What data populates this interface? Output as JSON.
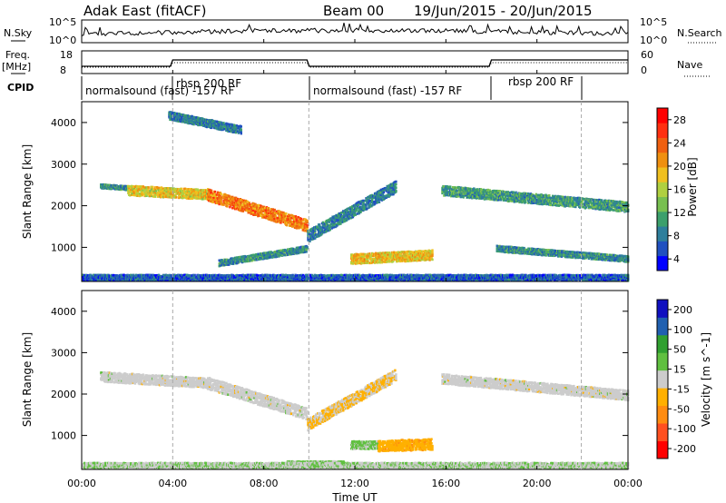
{
  "header": {
    "station": "Adak East (fitACF)",
    "beam": "Beam 00",
    "date_range": "19/Jun/2015 - 20/Jun/2015"
  },
  "left_labels": {
    "nsky": "N.Sky",
    "freq": "Freq.",
    "freq_unit": "[MHz]",
    "cpid": "CPID"
  },
  "right_labels": {
    "nsearch": "N.Search",
    "nave": "Nave"
  },
  "noise_axis": {
    "left_ticks": [
      "10^5",
      "10^0"
    ],
    "right_ticks": [
      "10^5",
      "10^0"
    ]
  },
  "freq_axis": {
    "left_ticks": [
      "18",
      "8"
    ],
    "right_ticks": [
      "60",
      "0"
    ]
  },
  "cpid_labels": [
    "normalsound (fast) -157 RF",
    "rbsp 200 RF",
    "normalsound (fast) -157 RF",
    "rbsp 200 RF"
  ],
  "x_axis": {
    "label": "Time UT",
    "ticks": [
      "00:00",
      "04:00",
      "08:00",
      "12:00",
      "16:00",
      "20:00",
      "00:00"
    ]
  },
  "colors": {
    "axis": "#000000",
    "mode_change_line": "#aaaaaa"
  },
  "chart_data": [
    {
      "type": "heatmap",
      "quantity": "Power",
      "ylabel": "Slant Range [km]",
      "xlabel": "",
      "xlim_hours": [
        0,
        24
      ],
      "ylim_km": [
        180,
        4500
      ],
      "yticks": [
        "1000",
        "2000",
        "3000",
        "4000"
      ],
      "colorbar": {
        "label": "Power [dB]",
        "ticks": [
          "28",
          "24",
          "20",
          "16",
          "12",
          "8",
          "4"
        ],
        "range": [
          0,
          30
        ],
        "colors": [
          "#0000ff",
          "#2050c0",
          "#2e7f9c",
          "#3ca06c",
          "#78c050",
          "#b0d040",
          "#f0c020",
          "#f09010",
          "#f06010",
          "#ff3010",
          "#ff0000"
        ]
      },
      "echo_bands": [
        {
          "t_start": 0.8,
          "t_end": 2.0,
          "r_start": 2500,
          "r_end": 2450,
          "width_km": 100,
          "value": 8
        },
        {
          "t_start": 2.0,
          "t_end": 5.5,
          "r_start": 2400,
          "r_end": 2300,
          "width_km": 250,
          "value": 17
        },
        {
          "t_start": 5.5,
          "t_end": 9.9,
          "r_start": 2300,
          "r_end": 1550,
          "width_km": 300,
          "value": 22
        },
        {
          "t_start": 9.9,
          "t_end": 13.8,
          "r_start": 1300,
          "r_end": 2500,
          "width_km": 300,
          "value": 7
        },
        {
          "t_start": 11.8,
          "t_end": 15.4,
          "r_start": 750,
          "r_end": 850,
          "width_km": 250,
          "value": 18
        },
        {
          "t_start": 15.8,
          "t_end": 24,
          "r_start": 2400,
          "r_end": 2000,
          "width_km": 250,
          "value": 9
        },
        {
          "t_start": 3.8,
          "t_end": 7.0,
          "r_start": 4200,
          "r_end": 3850,
          "width_km": 200,
          "value": 7
        },
        {
          "t_start": 6.0,
          "t_end": 9.9,
          "r_start": 650,
          "r_end": 1000,
          "width_km": 150,
          "value": 8
        },
        {
          "t_start": 18.2,
          "t_end": 24,
          "r_start": 1000,
          "r_end": 750,
          "width_km": 150,
          "value": 8
        },
        {
          "t_start": 0,
          "t_end": 24,
          "r_start": 300,
          "r_end": 300,
          "width_km": 150,
          "value": 5
        }
      ]
    },
    {
      "type": "heatmap",
      "quantity": "Velocity",
      "ylabel": "Slant Range [km]",
      "xlabel": "Time UT",
      "xlim_hours": [
        0,
        24
      ],
      "ylim_km": [
        180,
        4500
      ],
      "yticks": [
        "1000",
        "2000",
        "3000",
        "4000"
      ],
      "colorbar": {
        "label": "Velocity [m s^-1]",
        "ticks": [
          "200",
          "100",
          "50",
          "15",
          "-15",
          "-50",
          "-100",
          "-200"
        ],
        "range": [
          -250,
          250
        ],
        "colors": [
          "#ff0000",
          "#ff5020",
          "#ff8c10",
          "#ffb000",
          "#cccccc",
          "#60c040",
          "#30a030",
          "#2060b0",
          "#1010c0"
        ]
      },
      "echo_bands": [
        {
          "t_start": 0.8,
          "t_end": 5.5,
          "r_start": 2450,
          "r_end": 2300,
          "width_km": 250,
          "value": 0
        },
        {
          "t_start": 5.5,
          "t_end": 9.9,
          "r_start": 2300,
          "r_end": 1550,
          "width_km": 300,
          "value": 0
        },
        {
          "t_start": 9.9,
          "t_end": 13.8,
          "r_start": 1300,
          "r_end": 2500,
          "width_km": 300,
          "value": -30
        },
        {
          "t_start": 11.8,
          "t_end": 13.0,
          "r_start": 800,
          "r_end": 800,
          "width_km": 200,
          "value": 40
        },
        {
          "t_start": 13.0,
          "t_end": 15.4,
          "r_start": 780,
          "r_end": 820,
          "width_km": 280,
          "value": -60
        },
        {
          "t_start": 15.8,
          "t_end": 24,
          "r_start": 2400,
          "r_end": 2000,
          "width_km": 250,
          "value": 0
        },
        {
          "t_start": 9.0,
          "t_end": 11.5,
          "r_start": 350,
          "r_end": 350,
          "width_km": 120,
          "value": 40
        },
        {
          "t_start": 0,
          "t_end": 24,
          "r_start": 300,
          "r_end": 300,
          "width_km": 150,
          "value": 20
        }
      ]
    }
  ]
}
